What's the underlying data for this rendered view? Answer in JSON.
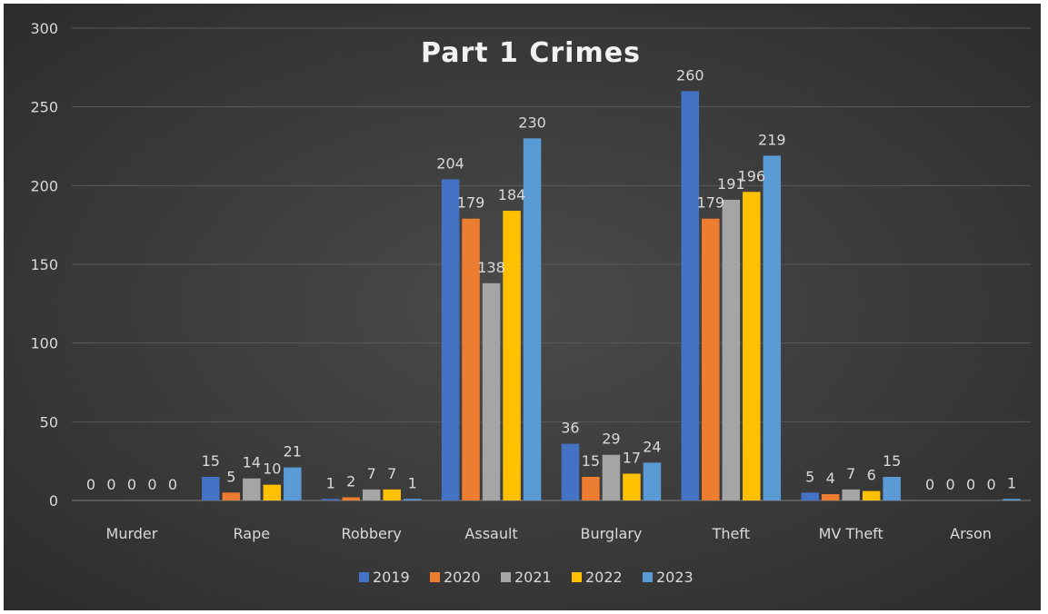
{
  "chart_data": {
    "type": "bar",
    "title": "Part 1 Crimes",
    "xlabel": "",
    "ylabel": "",
    "ylim": [
      0,
      300
    ],
    "yticks": [
      0,
      50,
      100,
      150,
      200,
      250,
      300
    ],
    "grid": true,
    "legend_position": "bottom",
    "categories": [
      "Murder",
      "Rape",
      "Robbery",
      "Assault",
      "Burglary",
      "Theft",
      "MV Theft",
      "Arson"
    ],
    "series": [
      {
        "name": "2019",
        "color": "#4472C4",
        "values": [
          0,
          15,
          1,
          204,
          36,
          260,
          5,
          0
        ]
      },
      {
        "name": "2020",
        "color": "#ED7D31",
        "values": [
          0,
          5,
          2,
          179,
          15,
          179,
          4,
          0
        ]
      },
      {
        "name": "2021",
        "color": "#A5A5A5",
        "values": [
          0,
          14,
          7,
          138,
          29,
          191,
          7,
          0
        ]
      },
      {
        "name": "2022",
        "color": "#FFC000",
        "values": [
          0,
          10,
          7,
          184,
          17,
          196,
          6,
          0
        ]
      },
      {
        "name": "2023",
        "color": "#5B9BD5",
        "values": [
          0,
          21,
          1,
          230,
          24,
          219,
          15,
          1
        ]
      }
    ]
  }
}
